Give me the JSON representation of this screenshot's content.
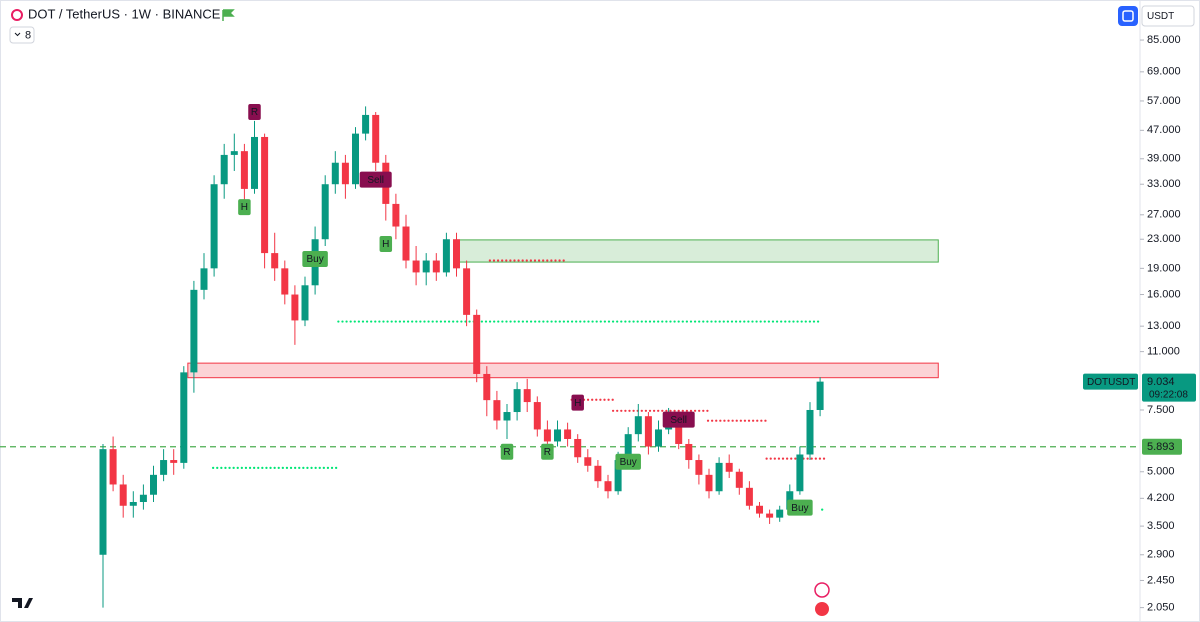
{
  "header": {
    "indicator_count": "8",
    "currency": "USDT"
  },
  "chart_data": {
    "type": "candlestick",
    "title": "DOT / TetherUS · 1W · BINANCE",
    "categories": [
      null,
      null,
      null,
      null,
      null,
      null,
      null,
      null,
      null,
      null,
      null,
      null,
      null,
      null,
      null,
      null,
      null,
      null,
      null,
      null,
      null,
      null,
      null,
      null,
      null,
      null,
      null,
      null,
      null,
      null,
      null,
      null,
      null,
      null,
      null,
      null,
      null,
      null,
      null,
      null,
      null,
      null,
      null,
      null,
      null,
      null,
      null,
      null,
      null,
      null,
      null,
      null,
      null,
      null,
      null,
      null,
      null,
      null,
      null,
      null,
      null,
      null,
      null,
      null,
      null,
      null,
      null,
      null,
      null,
      null,
      null,
      null
    ],
    "series": [
      {
        "name": "DOTUSDT",
        "up_color": "#089981",
        "down_color": "#f23645",
        "open": [
          2.9,
          5.8,
          4.6,
          4.0,
          4.1,
          4.3,
          4.9,
          5.4,
          5.3,
          9.6,
          16.5,
          19,
          33,
          40,
          41,
          32,
          45,
          21,
          19,
          16,
          13.5,
          17,
          23,
          33,
          38,
          33,
          46,
          52,
          38,
          29,
          25,
          20,
          18.5,
          20,
          18.5,
          23,
          19,
          14,
          9.5,
          8,
          7,
          7.4,
          8.6,
          7.9,
          6.6,
          6.1,
          6.6,
          6.2,
          5.5,
          5.2,
          4.7,
          4.4,
          5.4,
          6.4,
          7.2,
          5.9,
          6.6,
          7.3,
          6.0,
          5.4,
          4.9,
          4.4,
          5.3,
          5.0,
          4.5,
          4.0,
          3.8,
          3.7,
          3.9,
          4.4,
          5.6,
          7.5
        ],
        "high": [
          6.0,
          6.3,
          4.9,
          4.4,
          4.6,
          5.2,
          5.8,
          5.8,
          10,
          17.5,
          21,
          35,
          43,
          46,
          43,
          50,
          46,
          24,
          20,
          17,
          18,
          25,
          35,
          41,
          40,
          48,
          55,
          53,
          40,
          31,
          27,
          22,
          21,
          21,
          24,
          24,
          20,
          14.5,
          10,
          8.5,
          7.8,
          9.0,
          9.2,
          8.2,
          7.0,
          7.0,
          6.9,
          6.4,
          5.8,
          5.4,
          4.9,
          5.7,
          6.7,
          7.8,
          7.4,
          7.0,
          7.6,
          7.5,
          6.2,
          5.6,
          5.1,
          5.5,
          5.6,
          5.1,
          4.7,
          4.1,
          3.9,
          4.0,
          4.6,
          5.9,
          7.9,
          9.3
        ],
        "low": [
          2.05,
          4.4,
          3.7,
          3.7,
          3.9,
          4.1,
          4.7,
          4.9,
          5.1,
          8.4,
          15.5,
          18,
          30,
          36,
          28,
          31,
          19,
          17.5,
          15,
          11.5,
          13,
          16,
          22,
          31,
          30,
          32,
          44,
          36,
          26,
          23,
          19,
          17,
          17,
          17.5,
          18,
          18,
          13,
          9,
          7.2,
          6.6,
          6.2,
          7.0,
          7.4,
          6.3,
          5.8,
          5.9,
          5.9,
          5.3,
          5.0,
          4.5,
          4.2,
          4.3,
          5.2,
          6.1,
          5.6,
          5.7,
          6.4,
          5.8,
          5.1,
          4.6,
          4.2,
          4.3,
          4.8,
          4.3,
          3.9,
          3.7,
          3.55,
          3.6,
          3.8,
          4.3,
          5.4,
          7.2
        ],
        "close": [
          5.8,
          4.6,
          4.0,
          4.1,
          4.3,
          4.9,
          5.4,
          5.3,
          9.6,
          16.5,
          19,
          33,
          40,
          41,
          32,
          45,
          21,
          19,
          16,
          13.5,
          17,
          23,
          33,
          38,
          33,
          46,
          52,
          38,
          29,
          25,
          20,
          18.5,
          20,
          18.5,
          23,
          19,
          14,
          9.5,
          8,
          7,
          7.4,
          8.6,
          7.9,
          6.6,
          6.1,
          6.6,
          6.2,
          5.5,
          5.2,
          4.7,
          4.4,
          5.4,
          6.4,
          7.2,
          5.9,
          6.6,
          7.3,
          6.0,
          5.4,
          4.9,
          4.4,
          5.3,
          5.0,
          4.5,
          4.0,
          3.8,
          3.7,
          3.9,
          4.4,
          5.6,
          7.5,
          9.034
        ]
      }
    ],
    "countdown": "09:22:08",
    "log_scale": true,
    "ylim": [
      1.89,
      92
    ],
    "yticks": [
      {
        "value": 2.05,
        "label": "2.050"
      },
      {
        "value": 2.45,
        "label": "2.450"
      },
      {
        "value": 2.9,
        "label": "2.900"
      },
      {
        "value": 3.5,
        "label": "3.500"
      },
      {
        "value": 4.2,
        "label": "4.200"
      },
      {
        "value": 5,
        "label": "5.000"
      },
      {
        "value": 7.5,
        "label": "7.500"
      },
      {
        "value": 11,
        "label": "11.000"
      },
      {
        "value": 13,
        "label": "13.000"
      },
      {
        "value": 16,
        "label": "16.000"
      },
      {
        "value": 19,
        "label": "19.000"
      },
      {
        "value": 23,
        "label": "23.000"
      },
      {
        "value": 27,
        "label": "27.000"
      },
      {
        "value": 33,
        "label": "33.000"
      },
      {
        "value": 39,
        "label": "39.000"
      },
      {
        "value": 47,
        "label": "47.000"
      },
      {
        "value": 57,
        "label": "57.000"
      },
      {
        "value": 69,
        "label": "69.000"
      },
      {
        "value": 85,
        "label": "85.000"
      }
    ],
    "reference_line": {
      "value": 5.893,
      "color": "#4caf50"
    },
    "zones": [
      {
        "low": 19.8,
        "high": 22.9,
        "from": 34.9,
        "to": 82.7,
        "color": "#4caf50"
      },
      {
        "low": 9.27,
        "high": 10.2,
        "from": 8.4,
        "to": 82.7,
        "color": "#f23645"
      }
    ],
    "levels": [
      {
        "value": 20.0,
        "from": 38.3,
        "to": 45.9,
        "color": "#f23645"
      },
      {
        "value": 13.4,
        "from": 23.3,
        "to": 71.0,
        "color": "#00e676"
      },
      {
        "value": 5.13,
        "from": 10.9,
        "to": 23.0,
        "color": "#00e676"
      },
      {
        "value": 8.02,
        "from": 46.4,
        "to": 50.5,
        "color": "#f23645"
      },
      {
        "value": 7.46,
        "from": 50.5,
        "to": 59.9,
        "color": "#f23645"
      },
      {
        "value": 6.99,
        "from": 59.9,
        "to": 65.7,
        "color": "#f23645"
      },
      {
        "value": 5.45,
        "from": 65.7,
        "to": 71.3,
        "color": "#f23645"
      },
      {
        "value": 3.9,
        "from": 71.2,
        "to": 71.3,
        "color": "#00e676"
      }
    ],
    "signals": [
      {
        "label": "R",
        "at": 15,
        "value": 53,
        "color": "#880e4f"
      },
      {
        "label": "H",
        "at": 14,
        "value": 28.4,
        "color": "#4caf50"
      },
      {
        "label": "Sell",
        "at": 27,
        "value": 34,
        "color": "#880e4f"
      },
      {
        "label": "H",
        "at": 28,
        "value": 22.3,
        "color": "#4caf50"
      },
      {
        "label": "Buy",
        "at": 21,
        "value": 20.2,
        "color": "#4caf50"
      },
      {
        "label": "R",
        "at": 40,
        "value": 5.7,
        "color": "#4caf50"
      },
      {
        "label": "R",
        "at": 44,
        "value": 5.7,
        "color": "#4caf50"
      },
      {
        "label": "H",
        "at": 47,
        "value": 7.87,
        "color": "#880e4f"
      },
      {
        "label": "Buy",
        "at": 52,
        "value": 5.34,
        "color": "#4caf50"
      },
      {
        "label": "Sell",
        "at": 57,
        "value": 7.04,
        "color": "#880e4f"
      },
      {
        "label": "Buy",
        "at": 69,
        "value": 3.95,
        "color": "#4caf50"
      }
    ]
  }
}
